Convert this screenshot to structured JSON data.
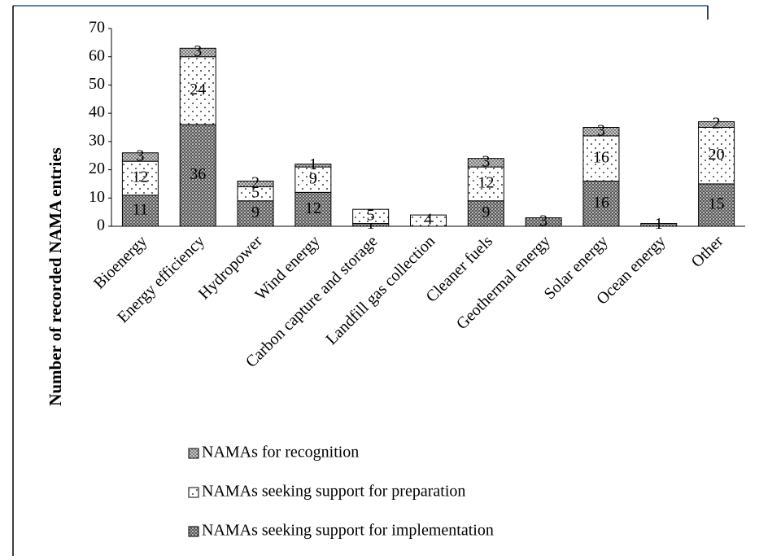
{
  "chart_data": {
    "type": "stacked_bar",
    "ylabel": "Number of recorded NAMA entries",
    "categories": [
      "Bioenergy",
      "Energy efficiency",
      "Hydropower",
      "Wind energy",
      "Carbon capture and storage",
      "Landfill gas collection",
      "Cleaner fuels",
      "Geothermal energy",
      "Solar energy",
      "Ocean energy",
      "Other"
    ],
    "series": [
      {
        "name": "NAMAs seeking support for implementation",
        "values": [
          11,
          36,
          9,
          12,
          1,
          null,
          9,
          3,
          16,
          1,
          15
        ]
      },
      {
        "name": "NAMAs seeking support for preparation",
        "values": [
          12,
          24,
          5,
          9,
          5,
          4,
          12,
          null,
          16,
          null,
          20
        ]
      },
      {
        "name": "NAMAs for recognition",
        "values": [
          3,
          3,
          2,
          1,
          null,
          null,
          3,
          null,
          3,
          null,
          2
        ]
      }
    ],
    "ylim": [
      0,
      70
    ],
    "yticks": [
      0,
      10,
      20,
      30,
      40,
      50,
      60,
      70
    ]
  }
}
